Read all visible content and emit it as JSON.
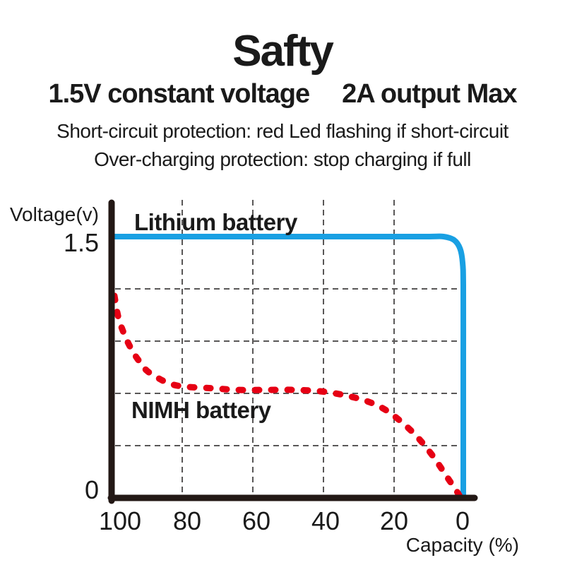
{
  "header": {
    "title": "Safty",
    "subtitle_left": "1.5V constant voltage",
    "subtitle_right": "2A output Max",
    "short_circuit_note": "Short-circuit protection: red Led flashing if short-circuit",
    "over_charging_note": "Over-charging protection: stop charging if full"
  },
  "colors": {
    "axis": "#231815",
    "grid": "#595757",
    "text": "#1a1a1a",
    "lithium_blue": "#19A0E3",
    "nimh_red": "#E60014"
  },
  "chart_data": {
    "type": "line",
    "title": "",
    "xlabel": "Capacity (%)",
    "ylabel": "Voltage(v)",
    "x_axis": {
      "reversed": true,
      "range": [
        100,
        0
      ],
      "tick_labels": [
        "100",
        "80",
        "60",
        "40",
        "20",
        "0"
      ],
      "tick_values": [
        100,
        80,
        60,
        40,
        20,
        0
      ]
    },
    "y_axis": {
      "range": [
        0,
        1.5
      ],
      "tick_labels": [
        "1.5",
        "0"
      ],
      "tick_values": [
        1.5,
        0
      ]
    },
    "grid": {
      "style": "dashed",
      "color": "#595757",
      "vertical_at": [
        80,
        60,
        40,
        20
      ],
      "horizontal_at": [
        1.2,
        0.9,
        0.6,
        0.3
      ]
    },
    "legend_position": "inline-annotations",
    "series": [
      {
        "name": "Lithium battery",
        "color": "#19A0E3",
        "style": "solid",
        "points": [
          [
            99.3,
            1.5
          ],
          [
            80,
            1.5
          ],
          [
            60,
            1.5
          ],
          [
            40,
            1.5
          ],
          [
            20,
            1.5
          ],
          [
            10,
            1.5
          ],
          [
            6,
            1.5
          ],
          [
            3,
            1.48
          ],
          [
            1.3,
            1.43
          ],
          [
            0.6,
            1.35
          ],
          [
            0.4,
            1.22
          ],
          [
            0.4,
            0.8
          ],
          [
            0.4,
            0.4
          ],
          [
            0.4,
            0.01
          ]
        ]
      },
      {
        "name": "NIMH battery",
        "color": "#E60014",
        "style": "dashed",
        "points": [
          [
            99.2,
            1.16
          ],
          [
            98,
            1.03
          ],
          [
            96,
            0.92
          ],
          [
            94,
            0.84
          ],
          [
            92,
            0.78
          ],
          [
            90,
            0.73
          ],
          [
            87,
            0.69
          ],
          [
            84,
            0.66
          ],
          [
            80,
            0.64
          ],
          [
            72,
            0.63
          ],
          [
            64,
            0.62
          ],
          [
            56,
            0.62
          ],
          [
            48,
            0.62
          ],
          [
            40,
            0.61
          ],
          [
            33,
            0.585
          ],
          [
            27,
            0.55
          ],
          [
            22,
            0.5
          ],
          [
            17,
            0.42
          ],
          [
            13,
            0.34
          ],
          [
            9,
            0.24
          ],
          [
            5,
            0.12
          ],
          [
            2,
            0.03
          ],
          [
            1.2,
            0
          ]
        ]
      }
    ]
  }
}
